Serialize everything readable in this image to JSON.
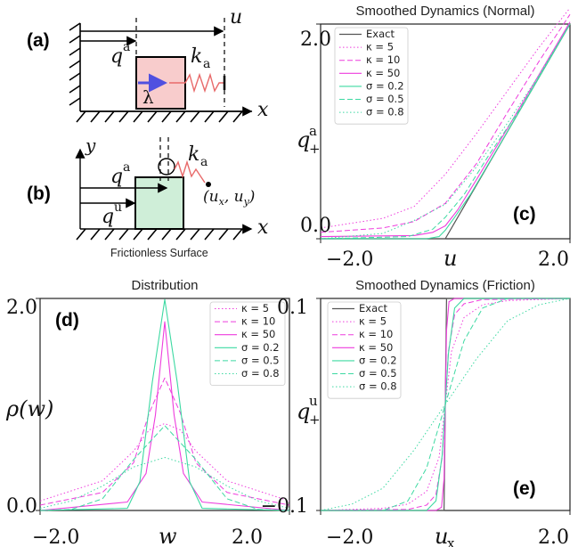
{
  "colors": {
    "exact": "#555555",
    "kappa": "#ee3ddd",
    "sigma": "#3dd9a2",
    "box_a": "#f8cccc",
    "box_b": "#cfeed8",
    "spring": "#e86a6a",
    "force": "#5050e0"
  },
  "diagram_a": {
    "letter": "(a)",
    "u": "u",
    "qa": "q",
    "qa_sup": "a",
    "k": "k",
    "k_sub": "a",
    "lambda": "λ",
    "x": "x",
    "arrow_icon": "force-arrow-icon"
  },
  "diagram_b": {
    "letter": "(b)",
    "y": "y",
    "x": "x",
    "qa": "q",
    "qa_sup": "a",
    "qu": "q",
    "qu_sup": "u",
    "k": "k",
    "k_sub": "a",
    "point": "(u",
    "point_x_sub": "x",
    "point_mid": ", u",
    "point_y_sub": "y",
    "point_end": ")",
    "surface": "Frictionless Surface"
  },
  "chart_data": [
    {
      "id": "c",
      "type": "line",
      "title": "Smoothed Dynamics (Normal)",
      "panel_letter": "(c)",
      "xlabel": "u",
      "ylabel": "q",
      "ylabel_sup": "a",
      "ylabel_sub": "+",
      "xlim": [
        -2.0,
        2.0
      ],
      "ylim": [
        0.0,
        2.0
      ],
      "xticks": [
        "−2.0",
        "2.0"
      ],
      "yticks": [
        "0.0",
        "2.0"
      ],
      "legend_position": "top-right",
      "series": [
        {
          "name": "Exact",
          "color": "exact",
          "style": "solid",
          "width": 1.2,
          "points": [
            [
              -2.0,
              0.0
            ],
            [
              0.0,
              0.0
            ],
            [
              2.0,
              2.0
            ]
          ]
        },
        {
          "name": "κ = 5",
          "color": "kappa",
          "style": "dotted",
          "width": 1.0,
          "points": [
            [
              -2.0,
              0.1
            ],
            [
              -1.0,
              0.19
            ],
            [
              -0.5,
              0.3
            ],
            [
              0.0,
              0.6
            ],
            [
              0.5,
              0.98
            ],
            [
              1.0,
              1.38
            ],
            [
              1.5,
              1.78
            ],
            [
              2.0,
              2.15
            ]
          ]
        },
        {
          "name": "κ = 10",
          "color": "kappa",
          "style": "dashed",
          "width": 1.0,
          "points": [
            [
              -2.0,
              0.06
            ],
            [
              -1.0,
              0.1
            ],
            [
              -0.5,
              0.16
            ],
            [
              0.0,
              0.33
            ],
            [
              0.5,
              0.7
            ],
            [
              1.0,
              1.18
            ],
            [
              1.5,
              1.65
            ],
            [
              2.0,
              2.09
            ]
          ]
        },
        {
          "name": "κ = 50",
          "color": "kappa",
          "style": "solid",
          "width": 1.1,
          "points": [
            [
              -2.0,
              0.02
            ],
            [
              -0.5,
              0.03
            ],
            [
              -0.2,
              0.06
            ],
            [
              0.0,
              0.12
            ],
            [
              0.2,
              0.27
            ],
            [
              0.5,
              0.55
            ],
            [
              1.0,
              1.03
            ],
            [
              2.0,
              2.02
            ]
          ]
        },
        {
          "name": "σ = 0.2",
          "color": "sigma",
          "style": "solid",
          "width": 1.1,
          "points": [
            [
              -2.0,
              0.0
            ],
            [
              -0.3,
              0.0
            ],
            [
              -0.1,
              0.02
            ],
            [
              0.0,
              0.08
            ],
            [
              0.15,
              0.2
            ],
            [
              0.4,
              0.41
            ],
            [
              1.0,
              1.0
            ],
            [
              2.0,
              2.0
            ]
          ]
        },
        {
          "name": "σ = 0.5",
          "color": "sigma",
          "style": "dashed",
          "width": 1.0,
          "points": [
            [
              -2.0,
              0.0
            ],
            [
              -0.6,
              0.02
            ],
            [
              -0.2,
              0.09
            ],
            [
              0.0,
              0.2
            ],
            [
              0.3,
              0.41
            ],
            [
              0.7,
              0.78
            ],
            [
              1.2,
              1.21
            ],
            [
              2.0,
              2.0
            ]
          ]
        },
        {
          "name": "σ = 0.8",
          "color": "sigma",
          "style": "dotted",
          "width": 1.0,
          "points": [
            [
              -2.0,
              0.0
            ],
            [
              -1.0,
              0.05
            ],
            [
              -0.5,
              0.17
            ],
            [
              0.0,
              0.32
            ],
            [
              0.5,
              0.67
            ],
            [
              1.0,
              1.08
            ],
            [
              1.5,
              1.52
            ],
            [
              2.0,
              2.0
            ]
          ]
        }
      ]
    },
    {
      "id": "d",
      "type": "line",
      "title": "Distribution",
      "panel_letter": "(d)",
      "xlabel": "w",
      "ylabel": "ρ(w)",
      "xlim": [
        -2.0,
        2.0
      ],
      "ylim": [
        0.0,
        2.0
      ],
      "xticks": [
        "−2.0",
        "2.0"
      ],
      "yticks": [
        "0.0",
        "2.0"
      ],
      "legend_position": "top-right",
      "series": [
        {
          "name": "κ = 5",
          "color": "kappa",
          "style": "dotted",
          "width": 1.0,
          "points": [
            [
              -2.0,
              0.09
            ],
            [
              -1.0,
              0.28
            ],
            [
              -0.5,
              0.56
            ],
            [
              -0.25,
              0.76
            ],
            [
              0.0,
              0.82
            ],
            [
              0.25,
              0.76
            ],
            [
              0.5,
              0.56
            ],
            [
              1.0,
              0.28
            ],
            [
              2.0,
              0.09
            ]
          ]
        },
        {
          "name": "κ = 10",
          "color": "kappa",
          "style": "dashed",
          "width": 1.0,
          "points": [
            [
              -2.0,
              0.05
            ],
            [
              -1.0,
              0.17
            ],
            [
              -0.5,
              0.45
            ],
            [
              -0.25,
              0.92
            ],
            [
              0.0,
              1.25
            ],
            [
              0.25,
              0.92
            ],
            [
              0.5,
              0.45
            ],
            [
              1.0,
              0.17
            ],
            [
              2.0,
              0.05
            ]
          ]
        },
        {
          "name": "κ = 50",
          "color": "kappa",
          "style": "solid",
          "width": 1.1,
          "points": [
            [
              -2.0,
              0.0
            ],
            [
              -0.6,
              0.08
            ],
            [
              -0.3,
              0.35
            ],
            [
              -0.15,
              0.9
            ],
            [
              0.0,
              1.78
            ],
            [
              0.15,
              0.9
            ],
            [
              0.3,
              0.35
            ],
            [
              0.6,
              0.08
            ],
            [
              2.0,
              0.0
            ]
          ]
        },
        {
          "name": "σ = 0.2",
          "color": "sigma",
          "style": "solid",
          "width": 1.1,
          "points": [
            [
              -2.0,
              0.0
            ],
            [
              -0.6,
              0.02
            ],
            [
              -0.4,
              0.27
            ],
            [
              -0.2,
              1.21
            ],
            [
              0.0,
              1.99
            ],
            [
              0.2,
              1.21
            ],
            [
              0.4,
              0.27
            ],
            [
              0.6,
              0.02
            ],
            [
              2.0,
              0.0
            ]
          ]
        },
        {
          "name": "σ = 0.5",
          "color": "sigma",
          "style": "dashed",
          "width": 1.0,
          "points": [
            [
              -2.0,
              0.0
            ],
            [
              -1.5,
              0.01
            ],
            [
              -1.0,
              0.11
            ],
            [
              -0.5,
              0.48
            ],
            [
              0.0,
              0.8
            ],
            [
              0.5,
              0.48
            ],
            [
              1.0,
              0.11
            ],
            [
              1.5,
              0.01
            ],
            [
              2.0,
              0.0
            ]
          ]
        },
        {
          "name": "σ = 0.8",
          "color": "sigma",
          "style": "dotted",
          "width": 1.0,
          "points": [
            [
              -2.0,
              0.02
            ],
            [
              -1.5,
              0.09
            ],
            [
              -1.0,
              0.23
            ],
            [
              -0.5,
              0.41
            ],
            [
              0.0,
              0.5
            ],
            [
              0.5,
              0.41
            ],
            [
              1.0,
              0.23
            ],
            [
              1.5,
              0.09
            ],
            [
              2.0,
              0.02
            ]
          ]
        }
      ]
    },
    {
      "id": "e",
      "type": "line",
      "title": "Smoothed Dynamics (Friction)",
      "panel_letter": "(e)",
      "xlabel": "u",
      "xlabel_sub": "x",
      "ylabel": "q",
      "ylabel_sup": "u",
      "ylabel_sub": "+",
      "xlim": [
        -2.0,
        2.0
      ],
      "ylim": [
        -0.1,
        0.1
      ],
      "xticks": [
        "−2.0",
        "2.0"
      ],
      "yticks": [
        "−0.1",
        "0.1"
      ],
      "legend_position": "top-left",
      "series": [
        {
          "name": "Exact",
          "color": "exact",
          "style": "solid",
          "width": 1.2,
          "points": [
            [
              -2.0,
              -0.1
            ],
            [
              -0.02,
              -0.1
            ],
            [
              0.02,
              0.1
            ],
            [
              2.0,
              0.1
            ]
          ]
        },
        {
          "name": "κ = 5",
          "color": "kappa",
          "style": "dotted",
          "width": 1.0,
          "points": [
            [
              -2.0,
              -0.1
            ],
            [
              -1.0,
              -0.098
            ],
            [
              -0.6,
              -0.094
            ],
            [
              -0.3,
              -0.082
            ],
            [
              -0.1,
              -0.05
            ],
            [
              0.0,
              0.0
            ],
            [
              0.1,
              0.05
            ],
            [
              0.3,
              0.082
            ],
            [
              0.6,
              0.094
            ],
            [
              1.0,
              0.098
            ],
            [
              2.0,
              0.1
            ]
          ]
        },
        {
          "name": "κ = 10",
          "color": "kappa",
          "style": "dashed",
          "width": 1.0,
          "points": [
            [
              -2.0,
              -0.1
            ],
            [
              -0.6,
              -0.099
            ],
            [
              -0.3,
              -0.095
            ],
            [
              -0.15,
              -0.085
            ],
            [
              -0.05,
              -0.05
            ],
            [
              0.0,
              0.0
            ],
            [
              0.05,
              0.05
            ],
            [
              0.15,
              0.085
            ],
            [
              0.3,
              0.095
            ],
            [
              0.6,
              0.099
            ],
            [
              2.0,
              0.1
            ]
          ]
        },
        {
          "name": "κ = 50",
          "color": "kappa",
          "style": "solid",
          "width": 1.1,
          "points": [
            [
              -2.0,
              -0.1
            ],
            [
              -0.15,
              -0.1
            ],
            [
              -0.06,
              -0.097
            ],
            [
              -0.02,
              -0.07
            ],
            [
              0.0,
              0.0
            ],
            [
              0.02,
              0.07
            ],
            [
              0.06,
              0.097
            ],
            [
              0.15,
              0.1
            ],
            [
              2.0,
              0.1
            ]
          ]
        },
        {
          "name": "σ = 0.2",
          "color": "sigma",
          "style": "solid",
          "width": 1.1,
          "points": [
            [
              -2.0,
              -0.1
            ],
            [
              -0.3,
              -0.1
            ],
            [
              -0.15,
              -0.091
            ],
            [
              -0.05,
              -0.048
            ],
            [
              0.0,
              0.0
            ],
            [
              0.05,
              0.048
            ],
            [
              0.15,
              0.091
            ],
            [
              0.3,
              0.1
            ],
            [
              2.0,
              0.1
            ]
          ]
        },
        {
          "name": "σ = 0.5",
          "color": "sigma",
          "style": "dashed",
          "width": 1.0,
          "points": [
            [
              -2.0,
              -0.1
            ],
            [
              -1.0,
              -0.1
            ],
            [
              -0.6,
              -0.091
            ],
            [
              -0.3,
              -0.06
            ],
            [
              0.0,
              0.0
            ],
            [
              0.3,
              0.06
            ],
            [
              0.6,
              0.091
            ],
            [
              1.0,
              0.1
            ],
            [
              2.0,
              0.1
            ]
          ]
        },
        {
          "name": "σ = 0.8",
          "color": "sigma",
          "style": "dotted",
          "width": 1.0,
          "points": [
            [
              -2.0,
              -0.1
            ],
            [
              -1.5,
              -0.094
            ],
            [
              -1.0,
              -0.079
            ],
            [
              -0.5,
              -0.043
            ],
            [
              0.0,
              0.0
            ],
            [
              0.5,
              0.043
            ],
            [
              1.0,
              0.079
            ],
            [
              1.5,
              0.094
            ],
            [
              2.0,
              0.1
            ]
          ]
        }
      ]
    }
  ]
}
